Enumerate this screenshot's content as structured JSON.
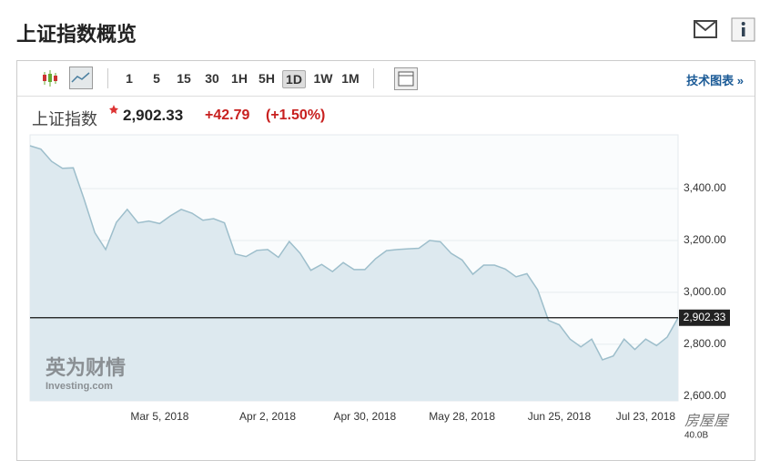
{
  "header": {
    "title": "上证指数概览"
  },
  "toolbar": {
    "intervals": [
      "1",
      "5",
      "15",
      "30",
      "1H",
      "5H",
      "1D",
      "1W",
      "1M"
    ],
    "selected": 6,
    "link": "技术图表 »"
  },
  "quote": {
    "name": "上证指数",
    "price": "2,902.33",
    "change": "+42.79",
    "change_pct": "(+1.50%)"
  },
  "chart_data": {
    "type": "area",
    "categories": [
      null,
      null,
      null,
      null,
      null,
      null,
      null,
      null,
      null,
      null,
      null,
      null,
      "Mar 5, 2018",
      null,
      null,
      null,
      null,
      null,
      null,
      null,
      null,
      null,
      "Apr 2, 2018",
      null,
      null,
      null,
      null,
      null,
      null,
      null,
      null,
      "Apr 30, 2018",
      null,
      null,
      null,
      null,
      null,
      null,
      null,
      null,
      "May 28, 2018",
      null,
      null,
      null,
      null,
      null,
      null,
      null,
      null,
      "Jun 25, 2018",
      null,
      null,
      null,
      null,
      null,
      null,
      null,
      "Jul 23, 2018",
      null,
      null,
      null
    ],
    "series": [
      {
        "name": "上证指数",
        "color": "#9dbecb",
        "fill": "#dde9ef",
        "values": [
          3565,
          3552,
          3505,
          3478,
          3480,
          3360,
          3230,
          3165,
          3270,
          3320,
          3268,
          3275,
          3265,
          3295,
          3320,
          3305,
          3278,
          3284,
          3268,
          3148,
          3138,
          3162,
          3165,
          3135,
          3196,
          3151,
          3085,
          3108,
          3080,
          3115,
          3088,
          3088,
          3130,
          3161,
          3165,
          3168,
          3170,
          3200,
          3195,
          3150,
          3125,
          3070,
          3105,
          3105,
          3090,
          3060,
          3072,
          3010,
          2892,
          2875,
          2820,
          2790,
          2820,
          2740,
          2755,
          2820,
          2780,
          2820,
          2795,
          2828,
          2902.33
        ]
      }
    ],
    "ylim": [
      2582,
      3607
    ],
    "yticks": [
      {
        "value": 2600,
        "label": "2,600.00"
      },
      {
        "value": 2800,
        "label": "2,800.00"
      },
      {
        "value": 3000,
        "label": "3,000.00"
      },
      {
        "value": 3200,
        "label": "3,200.00"
      },
      {
        "value": 3400,
        "label": "3,400.00"
      }
    ],
    "last": {
      "value": 2902.33,
      "label": "2,902.33"
    },
    "grid": true,
    "watermark": [
      "英为财情",
      "Investing.com",
      "房屋屋"
    ],
    "volume_label": "40.0B"
  }
}
